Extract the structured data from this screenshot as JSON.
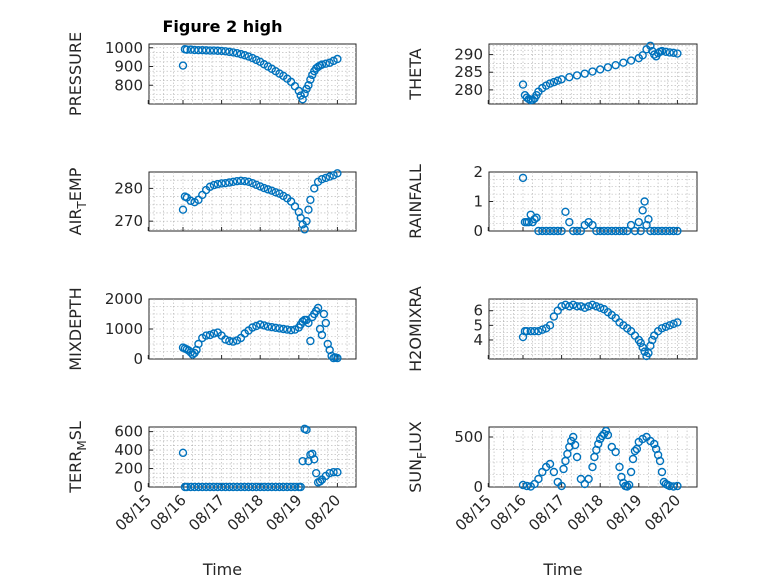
{
  "chart_data": [
    {
      "type": "scatter",
      "title": "Figure 2 high",
      "ylabel": "PRESSURE",
      "ylim": [
        700,
        1020
      ],
      "yticks": [
        800,
        900,
        1000
      ],
      "ytick_labels": [
        "800",
        "900",
        "1000"
      ],
      "xlim": [
        0.0,
        4.6
      ],
      "x": [
        0.0,
        0.05,
        0.1,
        0.2,
        0.3,
        0.4,
        0.5,
        0.6,
        0.7,
        0.8,
        0.9,
        1.0,
        1.1,
        1.2,
        1.3,
        1.4,
        1.5,
        1.6,
        1.7,
        1.8,
        1.9,
        2.0,
        2.1,
        2.2,
        2.3,
        2.4,
        2.5,
        2.6,
        2.7,
        2.8,
        2.9,
        3.0,
        3.05,
        3.1,
        3.15,
        3.2,
        3.25,
        3.3,
        3.35,
        3.4,
        3.45,
        3.5,
        3.55,
        3.6,
        3.7,
        3.8,
        3.9,
        4.0
      ],
      "y": [
        905,
        992,
        990,
        990,
        988,
        987,
        987,
        986,
        985,
        985,
        984,
        983,
        981,
        978,
        975,
        971,
        966,
        960,
        953,
        945,
        935,
        925,
        912,
        900,
        888,
        875,
        862,
        850,
        835,
        818,
        795,
        770,
        745,
        725,
        755,
        780,
        800,
        830,
        855,
        875,
        890,
        898,
        905,
        910,
        915,
        920,
        930,
        940
      ],
      "marker_color": "#0072bd"
    },
    {
      "type": "scatter",
      "ylabel": "THETA",
      "ylim": [
        276,
        293
      ],
      "yticks": [
        280,
        285,
        290
      ],
      "ytick_labels": [
        "280",
        "285",
        "290"
      ],
      "xlim": [
        0.0,
        4.6
      ],
      "x": [
        0.0,
        0.05,
        0.1,
        0.15,
        0.2,
        0.25,
        0.3,
        0.35,
        0.4,
        0.5,
        0.6,
        0.7,
        0.8,
        0.9,
        1.0,
        1.2,
        1.4,
        1.6,
        1.8,
        2.0,
        2.2,
        2.4,
        2.6,
        2.8,
        3.0,
        3.1,
        3.2,
        3.3,
        3.35,
        3.4,
        3.45,
        3.5,
        3.55,
        3.6,
        3.7,
        3.8,
        3.9,
        4.0
      ],
      "y": [
        281.5,
        278.5,
        277.8,
        277.4,
        277.1,
        277.2,
        277.6,
        278.5,
        279.5,
        280.5,
        281.2,
        281.8,
        282.2,
        282.6,
        283.0,
        283.6,
        284.1,
        284.6,
        285.2,
        285.8,
        286.4,
        287.0,
        287.7,
        288.3,
        289.0,
        289.8,
        291.5,
        292.5,
        291.0,
        290.0,
        289.5,
        290.4,
        290.8,
        291.0,
        290.8,
        290.6,
        290.5,
        290.3
      ],
      "marker_color": "#0072bd"
    },
    {
      "type": "scatter",
      "ylabel": "AIR_TEMP",
      "ylabel_main": "AIR",
      "ylabel_sub": "T",
      "ylabel_tail": "EMP",
      "ylim": [
        267,
        285
      ],
      "yticks": [
        270,
        280
      ],
      "ytick_labels": [
        "270",
        "280"
      ],
      "xlim": [
        0.0,
        4.6
      ],
      "x": [
        0.0,
        0.05,
        0.1,
        0.2,
        0.3,
        0.4,
        0.5,
        0.6,
        0.7,
        0.8,
        0.9,
        1.0,
        1.1,
        1.2,
        1.3,
        1.4,
        1.5,
        1.6,
        1.7,
        1.8,
        1.9,
        2.0,
        2.1,
        2.2,
        2.3,
        2.4,
        2.5,
        2.6,
        2.7,
        2.8,
        2.9,
        3.0,
        3.05,
        3.1,
        3.15,
        3.2,
        3.25,
        3.3,
        3.4,
        3.5,
        3.6,
        3.7,
        3.8,
        3.9,
        4.0
      ],
      "y": [
        273.5,
        277.5,
        277.2,
        276.2,
        275.8,
        276.5,
        278.0,
        279.5,
        280.5,
        281.0,
        281.3,
        281.5,
        281.6,
        281.8,
        282.0,
        282.2,
        282.3,
        282.2,
        282.0,
        281.6,
        281.1,
        280.6,
        280.1,
        279.7,
        279.3,
        278.8,
        278.4,
        277.7,
        277.0,
        276.0,
        274.5,
        272.8,
        271.0,
        269.0,
        267.5,
        270.0,
        273.5,
        276.5,
        280.0,
        282.0,
        282.8,
        283.2,
        283.6,
        284.0,
        284.6
      ],
      "marker_color": "#0072bd"
    },
    {
      "type": "scatter",
      "ylabel": "RAINFALL",
      "ylim": [
        0,
        2
      ],
      "yticks": [
        0,
        1,
        2
      ],
      "ytick_labels": [
        "0",
        "1",
        "2"
      ],
      "xlim": [
        0.0,
        4.6
      ],
      "x": [
        0.0,
        0.05,
        0.1,
        0.15,
        0.2,
        0.25,
        0.3,
        0.35,
        0.4,
        0.5,
        0.6,
        0.7,
        0.8,
        0.9,
        1.0,
        1.1,
        1.2,
        1.3,
        1.4,
        1.5,
        1.6,
        1.7,
        1.8,
        1.9,
        2.0,
        2.1,
        2.2,
        2.3,
        2.4,
        2.5,
        2.6,
        2.7,
        2.8,
        2.9,
        3.0,
        3.05,
        3.1,
        3.15,
        3.2,
        3.25,
        3.3,
        3.4,
        3.5,
        3.6,
        3.7,
        3.8,
        3.9,
        4.0
      ],
      "y": [
        1.8,
        0.3,
        0.3,
        0.3,
        0.55,
        0.3,
        0.4,
        0.45,
        0.0,
        0.0,
        0.0,
        0.0,
        0.0,
        0.0,
        0.0,
        0.65,
        0.3,
        0.0,
        0.0,
        0.0,
        0.2,
        0.3,
        0.2,
        0.0,
        0.0,
        0.0,
        0.0,
        0.0,
        0.0,
        0.0,
        0.0,
        0.0,
        0.2,
        0.0,
        0.3,
        0.0,
        0.7,
        1.0,
        0.2,
        0.4,
        0.0,
        0.0,
        0.0,
        0.0,
        0.0,
        0.0,
        0.0,
        0.0
      ],
      "marker_color": "#0072bd"
    },
    {
      "type": "scatter",
      "ylabel": "MIXDEPTH",
      "ylim": [
        0,
        2000
      ],
      "yticks": [
        0,
        1000,
        2000
      ],
      "ytick_labels": [
        "0",
        "1000",
        "2000"
      ],
      "xlim": [
        0.0,
        4.6
      ],
      "x": [
        0.0,
        0.05,
        0.1,
        0.15,
        0.2,
        0.25,
        0.3,
        0.35,
        0.4,
        0.5,
        0.6,
        0.7,
        0.8,
        0.9,
        1.0,
        1.1,
        1.2,
        1.3,
        1.4,
        1.5,
        1.6,
        1.7,
        1.8,
        1.9,
        2.0,
        2.1,
        2.2,
        2.3,
        2.4,
        2.5,
        2.6,
        2.7,
        2.8,
        2.9,
        3.0,
        3.05,
        3.1,
        3.15,
        3.2,
        3.25,
        3.3,
        3.35,
        3.4,
        3.45,
        3.5,
        3.55,
        3.6,
        3.65,
        3.7,
        3.75,
        3.8,
        3.85,
        3.9,
        3.95,
        4.0
      ],
      "y": [
        380,
        350,
        320,
        280,
        220,
        150,
        200,
        300,
        500,
        700,
        780,
        800,
        850,
        880,
        780,
        650,
        600,
        580,
        620,
        700,
        850,
        950,
        1050,
        1100,
        1150,
        1120,
        1080,
        1060,
        1040,
        1020,
        1000,
        980,
        960,
        980,
        1050,
        1150,
        1250,
        1300,
        1300,
        1200,
        600,
        1400,
        1500,
        1600,
        1700,
        1000,
        800,
        1500,
        1200,
        500,
        300,
        100,
        30,
        50,
        30
      ],
      "marker_color": "#0072bd"
    },
    {
      "type": "scatter",
      "ylabel": "H2OMIXRA",
      "ylim": [
        2.7,
        6.8
      ],
      "yticks": [
        4,
        5,
        6
      ],
      "ytick_labels": [
        "4",
        "5",
        "6"
      ],
      "xlim": [
        0.0,
        4.6
      ],
      "x": [
        0.0,
        0.05,
        0.1,
        0.2,
        0.3,
        0.4,
        0.5,
        0.6,
        0.7,
        0.8,
        0.9,
        1.0,
        1.1,
        1.2,
        1.3,
        1.4,
        1.5,
        1.6,
        1.7,
        1.8,
        1.9,
        2.0,
        2.1,
        2.2,
        2.3,
        2.4,
        2.5,
        2.6,
        2.7,
        2.8,
        2.9,
        3.0,
        3.05,
        3.1,
        3.15,
        3.2,
        3.25,
        3.3,
        3.35,
        3.4,
        3.5,
        3.6,
        3.7,
        3.8,
        3.9,
        4.0
      ],
      "y": [
        4.2,
        4.6,
        4.6,
        4.6,
        4.6,
        4.6,
        4.7,
        4.8,
        5.0,
        5.6,
        6.0,
        6.3,
        6.4,
        6.3,
        6.4,
        6.3,
        6.3,
        6.2,
        6.3,
        6.4,
        6.3,
        6.2,
        6.1,
        5.9,
        5.7,
        5.5,
        5.2,
        5.0,
        4.8,
        4.6,
        4.3,
        4.0,
        3.8,
        3.5,
        3.2,
        2.9,
        3.1,
        3.6,
        4.0,
        4.3,
        4.6,
        4.8,
        4.9,
        5.0,
        5.1,
        5.2
      ],
      "marker_color": "#0072bd"
    },
    {
      "type": "scatter",
      "ylabel": "TERR_MSL",
      "ylabel_main": "TERR",
      "ylabel_sub": "M",
      "ylabel_tail": "SL",
      "ylim": [
        0,
        650
      ],
      "yticks": [
        0,
        200,
        400,
        600
      ],
      "ytick_labels": [
        "0",
        "200",
        "400",
        "600"
      ],
      "xlim": [
        0.0,
        4.6
      ],
      "x": [
        0.0,
        0.05,
        0.1,
        0.2,
        0.3,
        0.4,
        0.5,
        0.6,
        0.7,
        0.8,
        0.9,
        1.0,
        1.1,
        1.2,
        1.3,
        1.4,
        1.5,
        1.6,
        1.7,
        1.8,
        1.9,
        2.0,
        2.1,
        2.2,
        2.3,
        2.4,
        2.5,
        2.6,
        2.7,
        2.8,
        2.9,
        3.0,
        3.05,
        3.1,
        3.15,
        3.2,
        3.25,
        3.3,
        3.35,
        3.4,
        3.45,
        3.5,
        3.55,
        3.6,
        3.7,
        3.8,
        3.9,
        4.0
      ],
      "y": [
        370,
        0,
        0,
        0,
        0,
        0,
        0,
        0,
        0,
        0,
        0,
        0,
        0,
        0,
        0,
        0,
        0,
        0,
        0,
        0,
        0,
        0,
        0,
        0,
        0,
        0,
        0,
        0,
        0,
        0,
        0,
        0,
        0,
        280,
        630,
        620,
        280,
        350,
        360,
        300,
        150,
        50,
        60,
        80,
        120,
        150,
        160,
        160
      ],
      "marker_color": "#0072bd"
    },
    {
      "type": "scatter",
      "ylabel": "SUN_FLUX",
      "ylabel_main": "SUN",
      "ylabel_sub": "F",
      "ylabel_tail": "LUX",
      "ylim": [
        0,
        600
      ],
      "yticks": [
        0,
        500
      ],
      "ytick_labels": [
        "0",
        "500"
      ],
      "xlim": [
        0.0,
        4.6
      ],
      "x": [
        0.0,
        0.1,
        0.2,
        0.3,
        0.4,
        0.5,
        0.6,
        0.7,
        0.8,
        0.9,
        1.0,
        1.05,
        1.1,
        1.15,
        1.2,
        1.25,
        1.3,
        1.35,
        1.4,
        1.5,
        1.6,
        1.7,
        1.8,
        1.85,
        1.9,
        1.95,
        2.0,
        2.05,
        2.1,
        2.15,
        2.2,
        2.3,
        2.4,
        2.5,
        2.55,
        2.6,
        2.65,
        2.7,
        2.75,
        2.8,
        2.85,
        2.9,
        2.95,
        3.0,
        3.1,
        3.2,
        3.3,
        3.4,
        3.45,
        3.5,
        3.55,
        3.6,
        3.65,
        3.7,
        3.75,
        3.8,
        3.9,
        4.0
      ],
      "y": [
        20,
        10,
        5,
        30,
        80,
        150,
        200,
        230,
        150,
        50,
        10,
        180,
        260,
        330,
        400,
        460,
        500,
        420,
        300,
        80,
        30,
        80,
        200,
        300,
        370,
        430,
        480,
        510,
        530,
        560,
        520,
        400,
        350,
        200,
        100,
        40,
        10,
        5,
        20,
        150,
        280,
        360,
        380,
        450,
        480,
        500,
        460,
        430,
        380,
        320,
        260,
        150,
        50,
        30,
        20,
        10,
        5,
        10
      ],
      "marker_color": "#0072bd"
    }
  ],
  "x_axis": {
    "label": "Time",
    "ticks": [
      "08/15",
      "08/16",
      "08/17",
      "08/18",
      "08/19",
      "08/20"
    ],
    "tick_values": [
      -0.9,
      0.0,
      1.0,
      2.0,
      3.0,
      4.0
    ]
  },
  "colors": {
    "marker": "#0072bd",
    "axes": "#262626",
    "grid": "#b0b0b0"
  }
}
